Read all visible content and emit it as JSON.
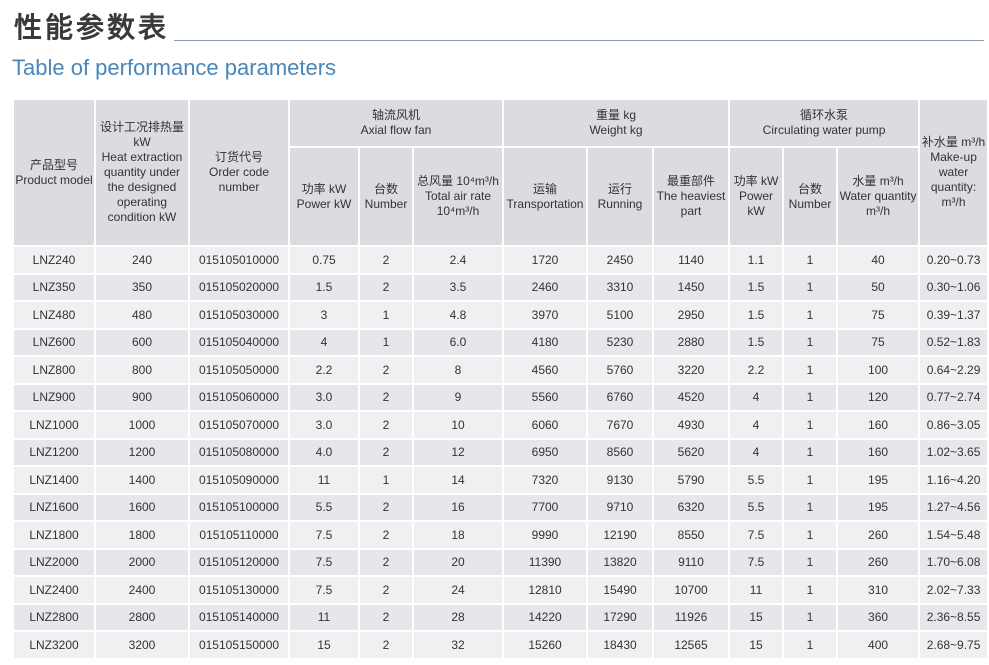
{
  "page": {
    "title_cn": "性能参数表",
    "title_en": "Table of performance parameters"
  },
  "table": {
    "headers": {
      "product_model": {
        "cn": "产品型号",
        "en": "Product model"
      },
      "heat_extraction": {
        "cn": "设计工况排热量 kW",
        "en": "Heat extraction quantity under the designed operating condition kW"
      },
      "order_code": {
        "cn": "订货代号",
        "en": "Order code number"
      },
      "axial_fan": {
        "cn": "轴流风机",
        "en": "Axial flow fan"
      },
      "weight": {
        "cn": "重量 kg",
        "en": "Weight kg"
      },
      "pump": {
        "cn": "循环水泵",
        "en": "Circulating water pump"
      },
      "makeup": {
        "cn": "补水量 m³/h",
        "en": "Make-up water quantity: m³/h"
      },
      "fan_power": {
        "cn": "功率 kW",
        "en": "Power kW"
      },
      "fan_number": {
        "cn": "台数",
        "en": "Number"
      },
      "fan_air": {
        "cn": "总风量 10⁴m³/h",
        "en": "Total air rate 10⁴m³/h"
      },
      "w_transport": {
        "cn": "运输",
        "en": "Transportation"
      },
      "w_running": {
        "cn": "运行",
        "en": "Running"
      },
      "w_heaviest": {
        "cn": "最重部件",
        "en": "The heaviest part"
      },
      "pump_power": {
        "cn": "功率 kW",
        "en": "Power kW"
      },
      "pump_number": {
        "cn": "台数",
        "en": "Number"
      },
      "pump_water": {
        "cn": "水量 m³/h",
        "en": "Water quantity m³/h"
      }
    },
    "rows": [
      [
        "LNZ240",
        "240",
        "015105010000",
        "0.75",
        "2",
        "2.4",
        "1720",
        "2450",
        "1140",
        "1.1",
        "1",
        "40",
        "0.20~0.73"
      ],
      [
        "LNZ350",
        "350",
        "015105020000",
        "1.5",
        "2",
        "3.5",
        "2460",
        "3310",
        "1450",
        "1.5",
        "1",
        "50",
        "0.30~1.06"
      ],
      [
        "LNZ480",
        "480",
        "015105030000",
        "3",
        "1",
        "4.8",
        "3970",
        "5100",
        "2950",
        "1.5",
        "1",
        "75",
        "0.39~1.37"
      ],
      [
        "LNZ600",
        "600",
        "015105040000",
        "4",
        "1",
        "6.0",
        "4180",
        "5230",
        "2880",
        "1.5",
        "1",
        "75",
        "0.52~1.83"
      ],
      [
        "LNZ800",
        "800",
        "015105050000",
        "2.2",
        "2",
        "8",
        "4560",
        "5760",
        "3220",
        "2.2",
        "1",
        "100",
        "0.64~2.29"
      ],
      [
        "LNZ900",
        "900",
        "015105060000",
        "3.0",
        "2",
        "9",
        "5560",
        "6760",
        "4520",
        "4",
        "1",
        "120",
        "0.77~2.74"
      ],
      [
        "LNZ1000",
        "1000",
        "015105070000",
        "3.0",
        "2",
        "10",
        "6060",
        "7670",
        "4930",
        "4",
        "1",
        "160",
        "0.86~3.05"
      ],
      [
        "LNZ1200",
        "1200",
        "015105080000",
        "4.0",
        "2",
        "12",
        "6950",
        "8560",
        "5620",
        "4",
        "1",
        "160",
        "1.02~3.65"
      ],
      [
        "LNZ1400",
        "1400",
        "015105090000",
        "11",
        "1",
        "14",
        "7320",
        "9130",
        "5790",
        "5.5",
        "1",
        "195",
        "1.16~4.20"
      ],
      [
        "LNZ1600",
        "1600",
        "015105100000",
        "5.5",
        "2",
        "16",
        "7700",
        "9710",
        "6320",
        "5.5",
        "1",
        "195",
        "1.27~4.56"
      ],
      [
        "LNZ1800",
        "1800",
        "015105110000",
        "7.5",
        "2",
        "18",
        "9990",
        "12190",
        "8550",
        "7.5",
        "1",
        "260",
        "1.54~5.48"
      ],
      [
        "LNZ2000",
        "2000",
        "015105120000",
        "7.5",
        "2",
        "20",
        "11390",
        "13820",
        "9110",
        "7.5",
        "1",
        "260",
        "1.70~6.08"
      ],
      [
        "LNZ2400",
        "2400",
        "015105130000",
        "7.5",
        "2",
        "24",
        "12810",
        "15490",
        "10700",
        "11",
        "1",
        "310",
        "2.02~7.33"
      ],
      [
        "LNZ2800",
        "2800",
        "015105140000",
        "11",
        "2",
        "28",
        "14220",
        "17290",
        "11926",
        "15",
        "1",
        "360",
        "2.36~8.55"
      ],
      [
        "LNZ3200",
        "3200",
        "015105150000",
        "15",
        "2",
        "32",
        "15260",
        "18430",
        "12565",
        "15",
        "1",
        "400",
        "2.68~9.75"
      ]
    ]
  }
}
